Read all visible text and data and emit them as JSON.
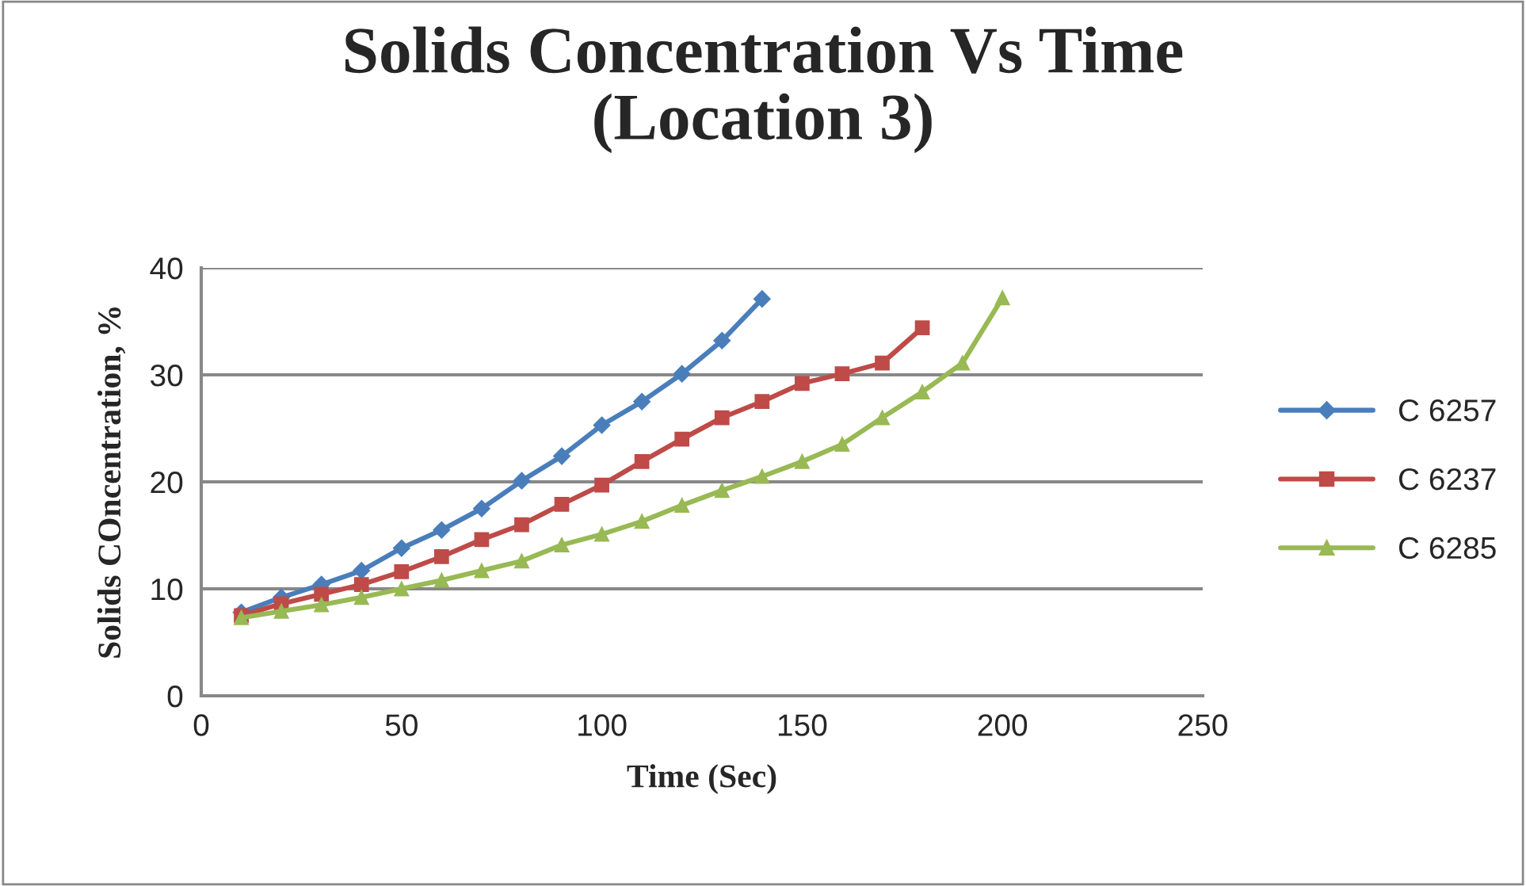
{
  "chart_data": {
    "type": "line",
    "title": "Solids Concentration Vs Time\n(Location 3)",
    "xlabel": "Time (Sec)",
    "ylabel": "Solids COncentration, %",
    "xlim": [
      0,
      250
    ],
    "xticks": [
      0,
      50,
      100,
      150,
      200,
      250
    ],
    "ylim": [
      0,
      40
    ],
    "yticks": [
      0,
      10,
      20,
      30,
      40
    ],
    "grid": "y",
    "legend": "right",
    "series": [
      {
        "name": "C 6257",
        "color": "#4a7ebb",
        "marker": "diamond",
        "x": [
          10,
          20,
          30,
          40,
          50,
          60,
          70,
          80,
          90,
          100,
          110,
          120,
          130,
          140
        ],
        "values": [
          7.8,
          9.2,
          10.4,
          11.7,
          13.8,
          15.5,
          17.5,
          20.1,
          22.4,
          25.3,
          27.5,
          30.1,
          33.2,
          37.1
        ]
      },
      {
        "name": "C 6237",
        "color": "#be4b48",
        "marker": "square",
        "x": [
          10,
          20,
          30,
          40,
          50,
          60,
          70,
          80,
          90,
          100,
          110,
          120,
          130,
          140,
          150,
          160,
          170,
          180
        ],
        "values": [
          7.5,
          8.6,
          9.5,
          10.4,
          11.6,
          13.0,
          14.6,
          16.0,
          17.9,
          19.7,
          21.9,
          24.0,
          26.0,
          27.5,
          29.2,
          30.1,
          31.1,
          34.4
        ]
      },
      {
        "name": "C 6285",
        "color": "#98b954",
        "marker": "triangle",
        "x": [
          10,
          20,
          30,
          40,
          50,
          60,
          70,
          80,
          90,
          100,
          110,
          120,
          130,
          140,
          150,
          160,
          170,
          180,
          190,
          200
        ],
        "values": [
          7.3,
          7.9,
          8.5,
          9.2,
          10.0,
          10.8,
          11.7,
          12.6,
          14.1,
          15.1,
          16.3,
          17.8,
          19.2,
          20.5,
          21.9,
          23.5,
          26.0,
          28.4,
          31.1,
          37.2
        ]
      }
    ]
  }
}
